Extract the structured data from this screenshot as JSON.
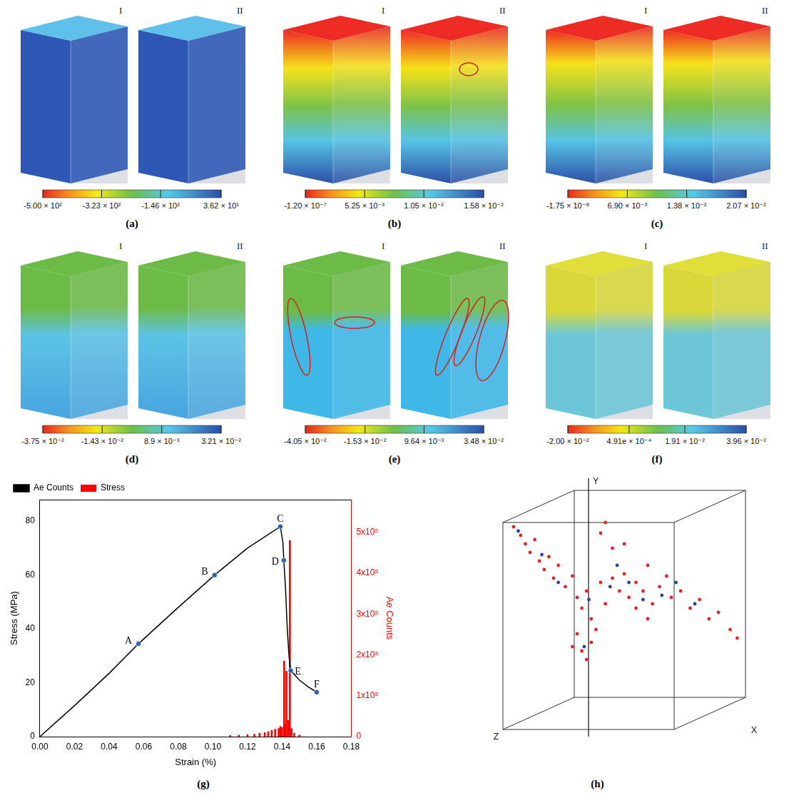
{
  "panels": [
    {
      "label": "(a)",
      "cubes": [
        "I",
        "II"
      ],
      "colorbar": {
        "range": [
          -500,
          36.2
        ],
        "ticks": [
          {
            "value": -500,
            "label": "-5.00 × 10²"
          },
          {
            "value": -323,
            "label": "-3.23 × 10²"
          },
          {
            "value": -146,
            "label": "-1.46 × 10²"
          },
          {
            "value": 36.2,
            "label": "3.62 × 10¹"
          }
        ]
      }
    },
    {
      "label": "(b)",
      "cubes": [
        "I",
        "II"
      ],
      "colorbar": {
        "range": [
          -1.2e-07,
          0.0158
        ],
        "ticks": [
          {
            "value": -1.2e-07,
            "label": "-1.20 × 10⁻⁷"
          },
          {
            "value": 0.00525,
            "label": "5.25 × 10⁻³"
          },
          {
            "value": 0.0105,
            "label": "1.05 × 10⁻²"
          },
          {
            "value": 0.0158,
            "label": "1.58 × 10⁻²"
          }
        ]
      }
    },
    {
      "label": "(c)",
      "cubes": [
        "I",
        "II"
      ],
      "colorbar": {
        "range": [
          -1.75e-08,
          0.0207
        ],
        "ticks": [
          {
            "value": -1.75e-08,
            "label": "-1.75 × 10⁻⁸"
          },
          {
            "value": 0.0069,
            "label": "6.90 × 10⁻³"
          },
          {
            "value": 0.0138,
            "label": "1.38 × 10⁻²"
          },
          {
            "value": 0.0207,
            "label": "2.07 × 10⁻²"
          }
        ]
      }
    },
    {
      "label": "(d)",
      "cubes": [
        "I",
        "II"
      ],
      "colorbar": {
        "range": [
          -0.0375,
          0.0321
        ],
        "ticks": [
          {
            "value": -0.0375,
            "label": "-3.75 × 10⁻²"
          },
          {
            "value": -0.0143,
            "label": "-1.43 × 10⁻²"
          },
          {
            "value": 0.0089,
            "label": "8.9 × 10⁻³"
          },
          {
            "value": 0.0321,
            "label": "3.21 × 10⁻²"
          }
        ]
      }
    },
    {
      "label": "(e)",
      "cubes": [
        "I",
        "II"
      ],
      "colorbar": {
        "range": [
          -0.0405,
          0.0348
        ],
        "ticks": [
          {
            "value": -0.0405,
            "label": "-4.05 × 10⁻²"
          },
          {
            "value": -0.0153,
            "label": "-1.53 × 10⁻²"
          },
          {
            "value": 0.00964,
            "label": "9.64 × 10⁻³"
          },
          {
            "value": 0.0348,
            "label": "3.48 × 10⁻²"
          }
        ]
      }
    },
    {
      "label": "(f)",
      "cubes": [
        "I",
        "II"
      ],
      "colorbar": {
        "range": [
          -0.02,
          0.0396
        ],
        "ticks": [
          {
            "value": -0.02,
            "label": "-2.00 × 10⁻²"
          },
          {
            "value": 0.000491,
            "label": "4.91e × 10⁻⁴"
          },
          {
            "value": 0.0191,
            "label": "1.91 × 10⁻²"
          },
          {
            "value": 0.0396,
            "label": "3.96 × 10⁻²"
          }
        ]
      }
    }
  ],
  "chart_data": {
    "type": "line",
    "label": "(g)",
    "x_label": "Strain (%)",
    "y_label": "Stress (MPa)",
    "y2_label": "Ae Counts",
    "legend": "top-left",
    "grid": false,
    "xlim": [
      0,
      0.18
    ],
    "xticks": [
      {
        "value": 0,
        "label": "0.00"
      },
      {
        "value": 0.02,
        "label": "0.02"
      },
      {
        "value": 0.04,
        "label": "0.04"
      },
      {
        "value": 0.06,
        "label": "0.06"
      },
      {
        "value": 0.08,
        "label": "0.08"
      },
      {
        "value": 0.1,
        "label": "0.10"
      },
      {
        "value": 0.12,
        "label": "0.12"
      },
      {
        "value": 0.14,
        "label": "0.14"
      },
      {
        "value": 0.16,
        "label": "0.16"
      },
      {
        "value": 0.18,
        "label": "0.18"
      }
    ],
    "ylim": [
      0,
      88
    ],
    "yticks": [
      0,
      20,
      40,
      60,
      80
    ],
    "y2lim": [
      0,
      580000
    ],
    "y2ticks": [
      0,
      {
        "value": 100000,
        "label": "1x10⁵"
      },
      {
        "value": 200000,
        "label": "2x10⁵"
      },
      {
        "value": 300000,
        "label": "3x10⁵"
      },
      {
        "value": 400000,
        "label": "4x10⁵"
      },
      {
        "value": 500000,
        "label": "5x10⁵"
      }
    ],
    "series": [
      {
        "name": "Stress",
        "type": "bar",
        "color": "#ff0000",
        "axis": "y2",
        "x": [
          0.11,
          0.115,
          0.12,
          0.124,
          0.127,
          0.13,
          0.132,
          0.134,
          0.136,
          0.138,
          0.139,
          0.14,
          0.1412,
          0.1418,
          0.1425,
          0.1435,
          0.1445,
          0.1455,
          0.147,
          0.15
        ],
        "values": [
          3000,
          4000,
          5000,
          6000,
          8000,
          10000,
          12000,
          15000,
          18000,
          20000,
          25000,
          22000,
          185000,
          30000,
          160000,
          40000,
          480000,
          20000,
          8000,
          4000
        ]
      },
      {
        "name": "Ae Counts",
        "type": "line",
        "color": "#000000",
        "x": [
          0,
          0.02,
          0.04,
          0.057,
          0.08,
          0.101,
          0.12,
          0.139,
          0.1405,
          0.141,
          0.142,
          0.143,
          0.144,
          0.145,
          0.15,
          0.155,
          0.16
        ],
        "values": [
          0,
          11.5,
          23.5,
          34.5,
          48,
          60,
          70,
          78,
          72,
          65.5,
          55,
          40,
          30,
          24.5,
          21,
          18.5,
          16.5
        ]
      }
    ],
    "annotations": [
      {
        "text": "A",
        "x": 0.057,
        "y": 34.5,
        "color": "#2f5fb0"
      },
      {
        "text": "B",
        "x": 0.101,
        "y": 60,
        "color": "#2f5fb0"
      },
      {
        "text": "C",
        "x": 0.139,
        "y": 78,
        "color": "#2f5fb0"
      },
      {
        "text": "D",
        "x": 0.141,
        "y": 65.5,
        "color": "#2f5fb0"
      },
      {
        "text": "E",
        "x": 0.145,
        "y": 24.5,
        "color": "#2f5fb0"
      },
      {
        "text": "F",
        "x": 0.16,
        "y": 16.5,
        "color": "#2f5fb0"
      }
    ]
  },
  "panel_h": {
    "label": "(h)",
    "y_axis": "Y",
    "z_axis": "Z",
    "x_axis": "X",
    "series": [
      {
        "color": "#e8202a",
        "points": [
          [
            0.03,
            0.12
          ],
          [
            0.06,
            0.16
          ],
          [
            0.08,
            0.2
          ],
          [
            0.1,
            0.24
          ],
          [
            0.12,
            0.18
          ],
          [
            0.14,
            0.28
          ],
          [
            0.16,
            0.32
          ],
          [
            0.18,
            0.26
          ],
          [
            0.2,
            0.36
          ],
          [
            0.22,
            0.3
          ],
          [
            0.25,
            0.4
          ],
          [
            0.28,
            0.35
          ],
          [
            0.3,
            0.45
          ],
          [
            0.32,
            0.5
          ],
          [
            0.34,
            0.42
          ],
          [
            0.36,
            0.55
          ],
          [
            0.38,
            0.6
          ],
          [
            0.4,
            0.38
          ],
          [
            0.42,
            0.48
          ],
          [
            0.45,
            0.36
          ],
          [
            0.48,
            0.42
          ],
          [
            0.5,
            0.34
          ],
          [
            0.52,
            0.45
          ],
          [
            0.55,
            0.38
          ],
          [
            0.58,
            0.42
          ],
          [
            0.6,
            0.3
          ],
          [
            0.62,
            0.48
          ],
          [
            0.65,
            0.4
          ],
          [
            0.68,
            0.35
          ],
          [
            0.7,
            0.45
          ],
          [
            0.74,
            0.42
          ],
          [
            0.78,
            0.5
          ],
          [
            0.82,
            0.46
          ],
          [
            0.86,
            0.55
          ],
          [
            0.9,
            0.52
          ],
          [
            0.95,
            0.6
          ],
          [
            0.98,
            0.64
          ],
          [
            0.3,
            0.62
          ],
          [
            0.32,
            0.7
          ],
          [
            0.34,
            0.74
          ],
          [
            0.36,
            0.66
          ],
          [
            0.28,
            0.68
          ],
          [
            0.45,
            0.22
          ],
          [
            0.4,
            0.15
          ],
          [
            0.42,
            0.1
          ],
          [
            0.5,
            0.2
          ],
          [
            0.55,
            0.5
          ],
          [
            0.6,
            0.55
          ]
        ]
      },
      {
        "color": "#2a3fa0",
        "points": [
          [
            0.05,
            0.14
          ],
          [
            0.15,
            0.25
          ],
          [
            0.22,
            0.38
          ],
          [
            0.35,
            0.46
          ],
          [
            0.44,
            0.4
          ],
          [
            0.52,
            0.38
          ],
          [
            0.58,
            0.46
          ],
          [
            0.66,
            0.44
          ],
          [
            0.72,
            0.38
          ],
          [
            0.8,
            0.48
          ],
          [
            0.33,
            0.68
          ],
          [
            0.47,
            0.3
          ]
        ]
      }
    ]
  }
}
